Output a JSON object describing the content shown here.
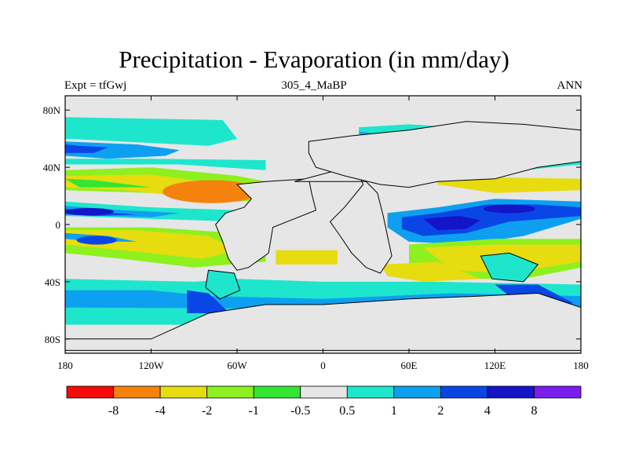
{
  "title": "Precipitation - Evaporation (in mm/day)",
  "subtitle_left": "Expt = tfGwj",
  "subtitle_center": "305_4_MaBP",
  "subtitle_right": "ANN",
  "chart_data": {
    "type": "heatmap",
    "projection": "cylindrical-equidistant",
    "xlim": [
      -180,
      180
    ],
    "ylim": [
      -90,
      90
    ],
    "x_ticks": [
      {
        "value": -180,
        "label": "180"
      },
      {
        "value": -120,
        "label": "120W"
      },
      {
        "value": -60,
        "label": "60W"
      },
      {
        "value": 0,
        "label": "0"
      },
      {
        "value": 60,
        "label": "60E"
      },
      {
        "value": 120,
        "label": "120E"
      },
      {
        "value": 180,
        "label": "180"
      }
    ],
    "y_ticks": [
      {
        "value": 80,
        "label": "80N"
      },
      {
        "value": 40,
        "label": "40N"
      },
      {
        "value": 0,
        "label": "0"
      },
      {
        "value": -40,
        "label": "40S"
      },
      {
        "value": -80,
        "label": "80S"
      }
    ],
    "contour_levels": [
      -8,
      -4,
      -2,
      -1,
      -0.5,
      0.5,
      1,
      2,
      4,
      8
    ],
    "colorbar_labels": [
      "-8",
      "-4",
      "-2",
      "-1",
      "-0.5",
      "0.5",
      "1",
      "2",
      "4",
      "8"
    ],
    "colorbar_colors": [
      "#f60a0a",
      "#f5820d",
      "#e6dc0f",
      "#8ef01e",
      "#32e632",
      "#e6e6e6",
      "#1ee6cd",
      "#0ea0f0",
      "#0a46e6",
      "#1414c8",
      "#7a1ef0"
    ],
    "grid": false
  }
}
